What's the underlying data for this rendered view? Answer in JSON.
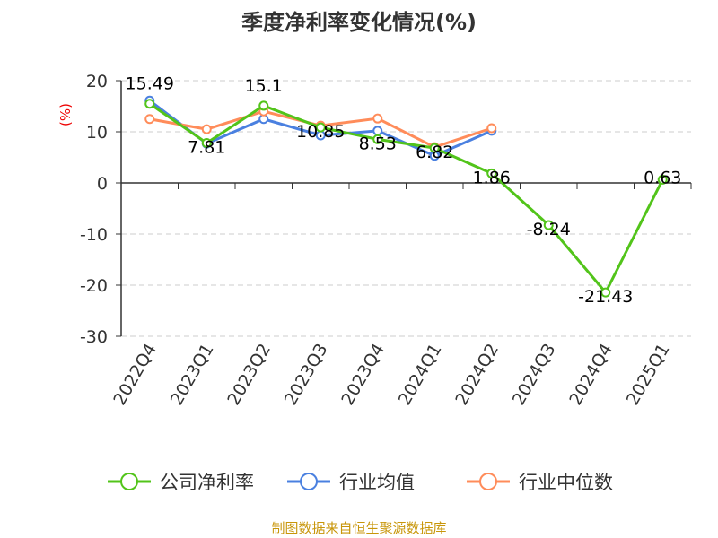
{
  "chart_data": {
    "type": "line",
    "title": "季度净利率变化情况(%)",
    "ylabel": "(%)",
    "ylim": [
      -30,
      20
    ],
    "yticks": [
      20,
      10,
      0,
      -10,
      -20,
      -30
    ],
    "grid": true,
    "categories": [
      "2022Q4",
      "2023Q1",
      "2023Q2",
      "2023Q3",
      "2023Q4",
      "2024Q1",
      "2024Q2",
      "2024Q3",
      "2024Q4",
      "2025Q1"
    ],
    "series": [
      {
        "name": "公司净利率",
        "color": "#52c41a",
        "values": [
          15.49,
          7.81,
          15.1,
          10.85,
          8.53,
          6.82,
          1.86,
          -8.24,
          -21.43,
          0.63
        ],
        "labels": [
          "15.49",
          "7.81",
          "15.1",
          "10.85",
          "8.53",
          "6.82",
          "1.86",
          "-8.24",
          "-21.43",
          "0.63"
        ]
      },
      {
        "name": "行业均值",
        "color": "#4a80e0",
        "values": [
          16.1,
          7.7,
          12.5,
          9.3,
          10.2,
          5.3,
          10.2,
          null,
          null,
          null
        ]
      },
      {
        "name": "行业中位数",
        "color": "#ff8c5a",
        "values": [
          12.5,
          10.5,
          14.0,
          11.2,
          12.6,
          7.0,
          10.7,
          null,
          null,
          null
        ]
      }
    ],
    "legend_position": "bottom",
    "source": "制图数据来自恒生聚源数据库"
  }
}
